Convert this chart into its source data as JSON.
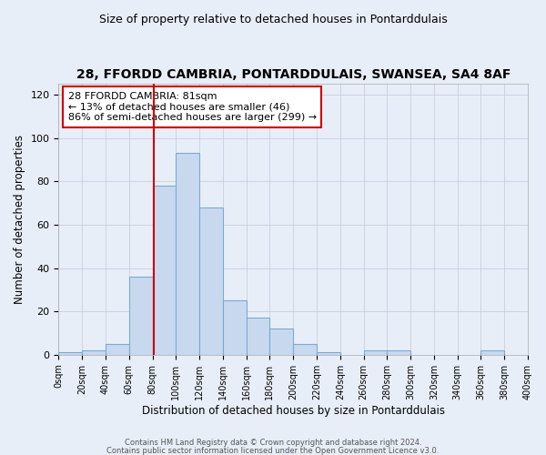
{
  "title": "28, FFORDD CAMBRIA, PONTARDDULAIS, SWANSEA, SA4 8AF",
  "subtitle": "Size of property relative to detached houses in Pontarddulais",
  "xlabel": "Distribution of detached houses by size in Pontarddulais",
  "ylabel": "Number of detached properties",
  "bar_color": "#c8d9ef",
  "bar_edge_color": "#7aaad4",
  "bg_color": "#e8eef8",
  "bin_edges": [
    0,
    20,
    40,
    60,
    80,
    100,
    120,
    140,
    160,
    180,
    200,
    220,
    240,
    260,
    280,
    300,
    320,
    340,
    360,
    380,
    400
  ],
  "counts": [
    1,
    2,
    5,
    36,
    78,
    93,
    68,
    25,
    17,
    12,
    5,
    1,
    0,
    2,
    2,
    0,
    0,
    0,
    2,
    0
  ],
  "ylim": [
    0,
    125
  ],
  "yticks": [
    0,
    20,
    40,
    60,
    80,
    100,
    120
  ],
  "property_line_x": 81,
  "property_line_color": "#cc0000",
  "annotation_title": "28 FFORDD CAMBRIA: 81sqm",
  "annotation_line1": "← 13% of detached houses are smaller (46)",
  "annotation_line2": "86% of semi-detached houses are larger (299) →",
  "annotation_box_color": "#ffffff",
  "annotation_border_color": "#cc0000",
  "footer_line1": "Contains HM Land Registry data © Crown copyright and database right 2024.",
  "footer_line2": "Contains public sector information licensed under the Open Government Licence v3.0."
}
